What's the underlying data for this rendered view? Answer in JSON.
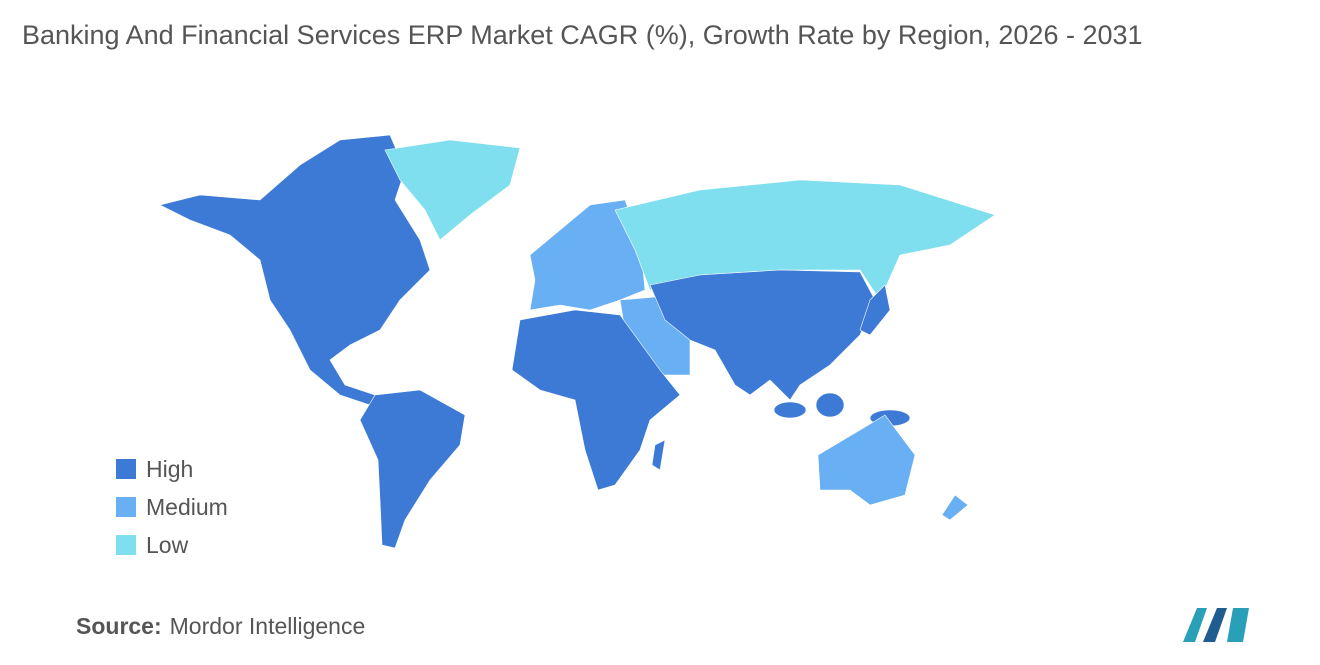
{
  "title": "Banking And Financial Services ERP Market CAGR (%), Growth Rate by Region, 2026 - 2031",
  "legend": [
    {
      "label": "High",
      "color": "#3d7ad6"
    },
    {
      "label": "Medium",
      "color": "#68aff3"
    },
    {
      "label": "Low",
      "color": "#7fdfee"
    }
  ],
  "source": {
    "label": "Source:",
    "text": "Mordor Intelligence"
  }
}
